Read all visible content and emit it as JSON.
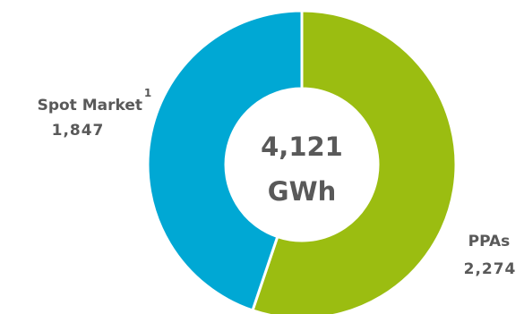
{
  "chart_data": {
    "type": "pie",
    "variant": "donut",
    "unit": "GWh",
    "total": 4121,
    "center_label": {
      "value": "4,121",
      "unit": "GWh"
    },
    "slices": [
      {
        "label": "PPAs",
        "value": 2274,
        "value_label": "2,274",
        "color": "#9bbd11"
      },
      {
        "label": "Spot Market",
        "value": 1847,
        "value_label": "1,847",
        "footnote": "1",
        "color": "#00a8d4"
      }
    ]
  }
}
